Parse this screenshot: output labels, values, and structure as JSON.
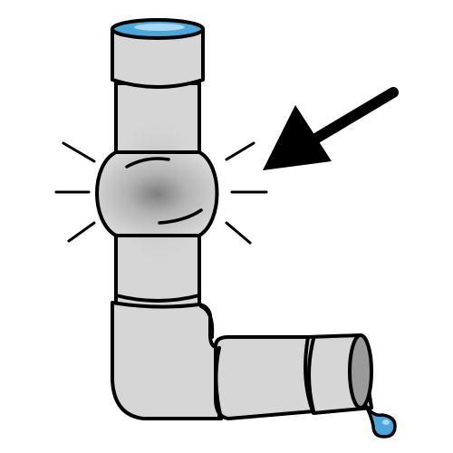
{
  "illustration": {
    "subject": "pipe-burst-pictogram",
    "icons": [
      "pipe-icon",
      "bulge-icon",
      "arrow-icon",
      "water-drop-icon",
      "impact-line-icon"
    ]
  },
  "colors": {
    "background": "#ffffff",
    "outline": "#000000",
    "pipe": "#d6d6d6",
    "pipe_shadow": "#9a9a9a",
    "bulge_center": "#8a8a8a",
    "water": "#4aa7dc",
    "water_light": "#a9d8f2"
  }
}
